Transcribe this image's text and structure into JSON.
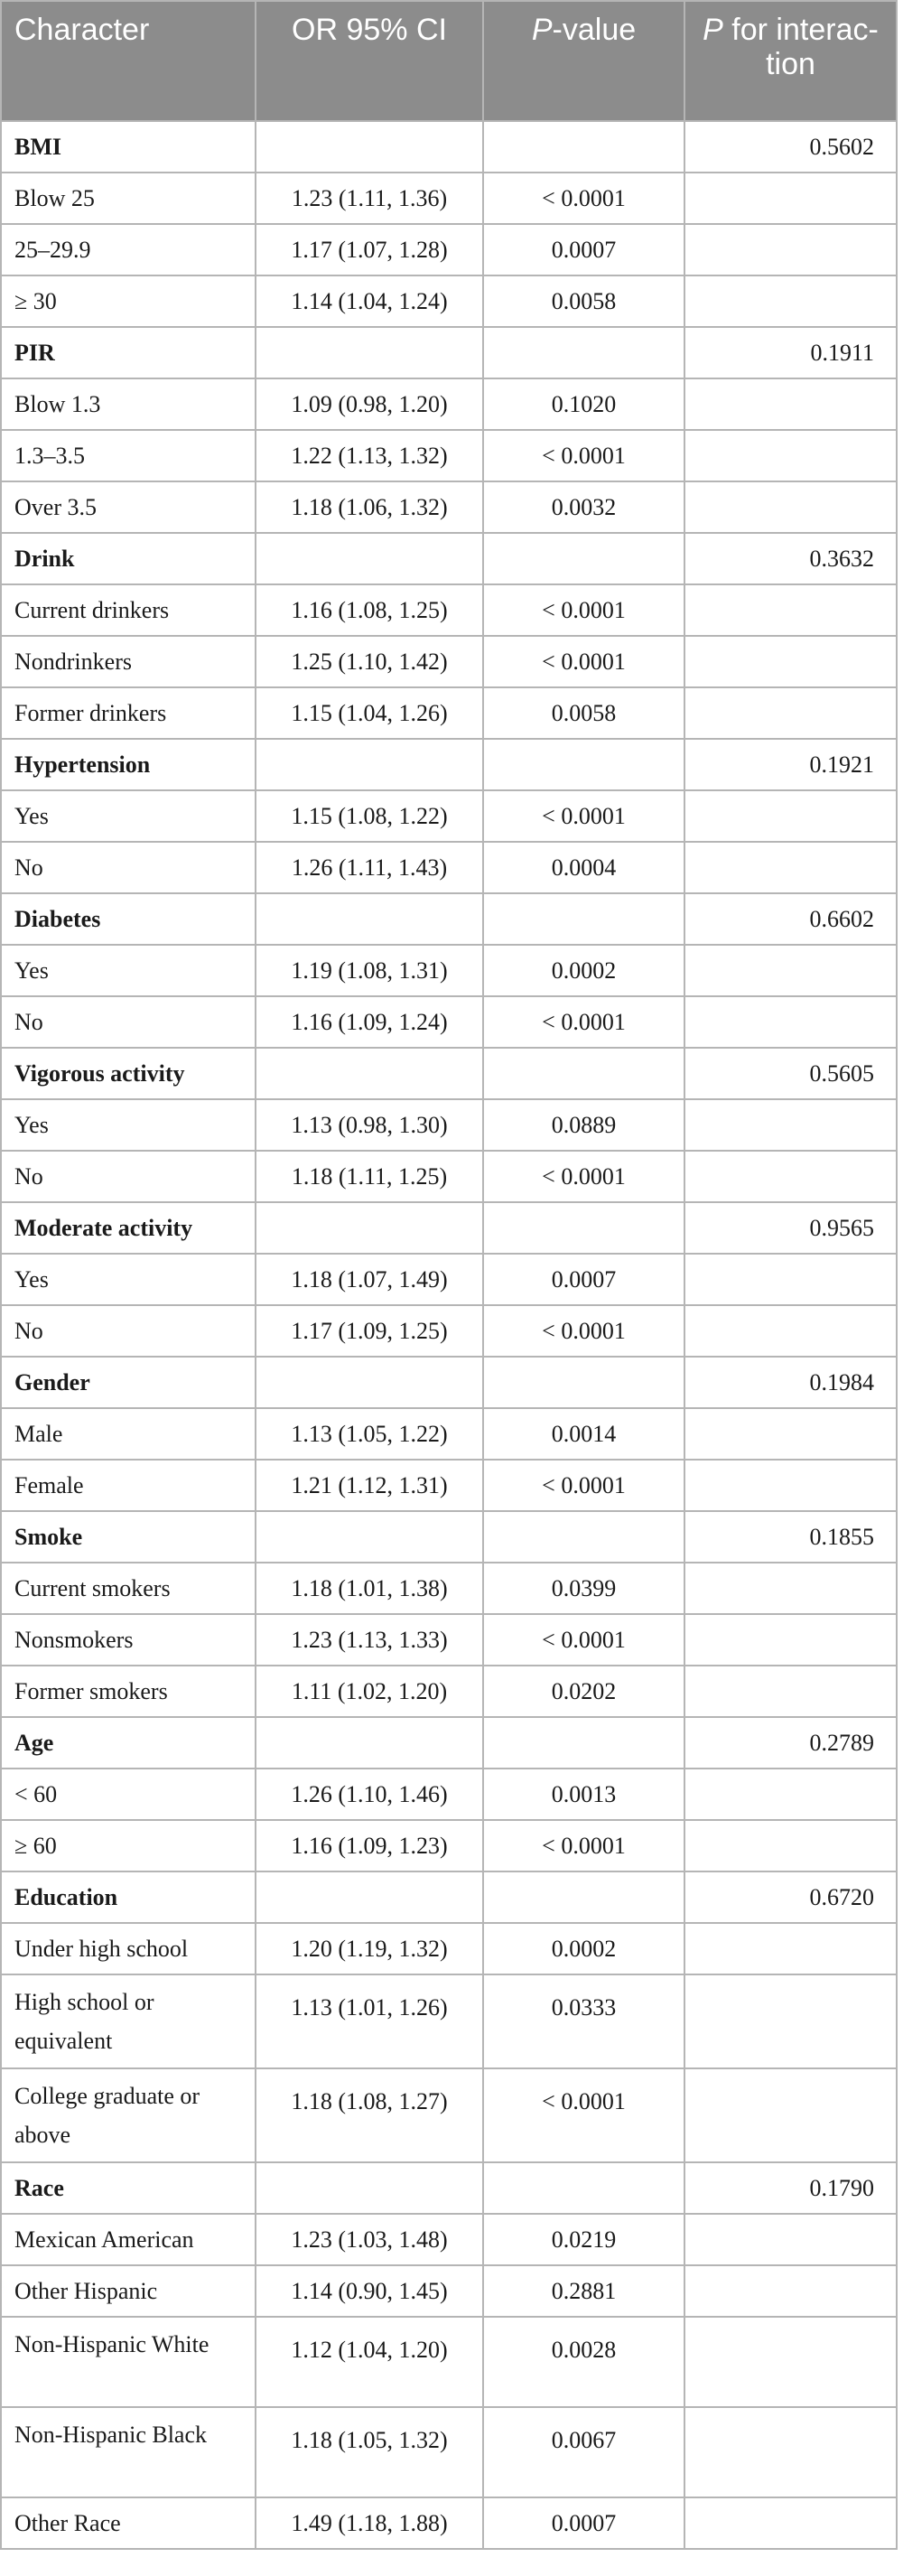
{
  "table": {
    "headers": {
      "character": "Character",
      "or": "OR 95% CI",
      "p_italic": "P",
      "p_rest": "-value",
      "pint_italic": "P",
      "pint_rest": " for interac-tion"
    },
    "rows": [
      {
        "label": "BMI",
        "or": "",
        "p": "",
        "pint": "0.5602",
        "group": true
      },
      {
        "label": "Blow 25",
        "or": "1.23 (1.11, 1.36)",
        "p": "< 0.0001",
        "pint": ""
      },
      {
        "label": "25–29.9",
        "or": "1.17 (1.07, 1.28)",
        "p": "0.0007",
        "pint": ""
      },
      {
        "label": "≥ 30",
        "or": "1.14 (1.04, 1.24)",
        "p": "0.0058",
        "pint": ""
      },
      {
        "label": "PIR",
        "or": "",
        "p": "",
        "pint": "0.1911",
        "group": true
      },
      {
        "label": "Blow 1.3",
        "or": "1.09 (0.98, 1.20)",
        "p": "0.1020",
        "pint": ""
      },
      {
        "label": "1.3–3.5",
        "or": "1.22 (1.13, 1.32)",
        "p": "< 0.0001",
        "pint": ""
      },
      {
        "label": "Over 3.5",
        "or": "1.18 (1.06, 1.32)",
        "p": "0.0032",
        "pint": ""
      },
      {
        "label": "Drink",
        "or": "",
        "p": "",
        "pint": "0.3632",
        "group": true
      },
      {
        "label": "Current drinkers",
        "or": "1.16 (1.08, 1.25)",
        "p": "< 0.0001",
        "pint": ""
      },
      {
        "label": "Nondrinkers",
        "or": "1.25 (1.10, 1.42)",
        "p": "< 0.0001",
        "pint": ""
      },
      {
        "label": "Former drinkers",
        "or": "1.15 (1.04, 1.26)",
        "p": "0.0058",
        "pint": ""
      },
      {
        "label": "Hypertension",
        "or": "",
        "p": "",
        "pint": "0.1921",
        "group": true
      },
      {
        "label": "Yes",
        "or": "1.15 (1.08, 1.22)",
        "p": "< 0.0001",
        "pint": ""
      },
      {
        "label": "No",
        "or": "1.26 (1.11, 1.43)",
        "p": "0.0004",
        "pint": ""
      },
      {
        "label": "Diabetes",
        "or": "",
        "p": "",
        "pint": "0.6602",
        "group": true
      },
      {
        "label": "Yes",
        "or": "1.19 (1.08, 1.31)",
        "p": "0.0002",
        "pint": ""
      },
      {
        "label": "No",
        "or": "1.16 (1.09, 1.24)",
        "p": "< 0.0001",
        "pint": ""
      },
      {
        "label": "Vigorous activity",
        "or": "",
        "p": "",
        "pint": "0.5605",
        "group": true
      },
      {
        "label": "Yes",
        "or": "1.13 (0.98, 1.30)",
        "p": "0.0889",
        "pint": ""
      },
      {
        "label": "No",
        "or": "1.18 (1.11, 1.25)",
        "p": "< 0.0001",
        "pint": ""
      },
      {
        "label": "Moderate activity",
        "or": "",
        "p": "",
        "pint": "0.9565",
        "group": true
      },
      {
        "label": "Yes",
        "or": "1.18 (1.07, 1.49)",
        "p": "0.0007",
        "pint": ""
      },
      {
        "label": "No",
        "or": "1.17 (1.09, 1.25)",
        "p": "< 0.0001",
        "pint": ""
      },
      {
        "label": "Gender",
        "or": "",
        "p": "",
        "pint": "0.1984",
        "group": true
      },
      {
        "label": "Male",
        "or": "1.13 (1.05, 1.22)",
        "p": "0.0014",
        "pint": ""
      },
      {
        "label": "Female",
        "or": "1.21 (1.12, 1.31)",
        "p": "< 0.0001",
        "pint": ""
      },
      {
        "label": "Smoke",
        "or": "",
        "p": "",
        "pint": "0.1855",
        "group": true
      },
      {
        "label": "Current smokers",
        "or": "1.18 (1.01, 1.38)",
        "p": "0.0399",
        "pint": ""
      },
      {
        "label": "Nonsmokers",
        "or": "1.23 (1.13, 1.33)",
        "p": "< 0.0001",
        "pint": ""
      },
      {
        "label": "Former smokers",
        "or": "1.11 (1.02, 1.20)",
        "p": "0.0202",
        "pint": ""
      },
      {
        "label": "Age",
        "or": "",
        "p": "",
        "pint": "0.2789",
        "group": true
      },
      {
        "label": "< 60",
        "or": "1.26 (1.10, 1.46)",
        "p": "0.0013",
        "pint": ""
      },
      {
        "label": "≥ 60",
        "or": "1.16 (1.09, 1.23)",
        "p": "< 0.0001",
        "pint": ""
      },
      {
        "label": "Education",
        "or": "",
        "p": "",
        "pint": "0.6720",
        "group": true
      },
      {
        "label": "Under high school",
        "or": "1.20 (1.19, 1.32)",
        "p": "0.0002",
        "pint": ""
      },
      {
        "label": "High school or equivalent",
        "or": "1.13 (1.01, 1.26)",
        "p": "0.0333",
        "pint": "",
        "tall": true
      },
      {
        "label": "College graduate or above",
        "or": "1.18 (1.08, 1.27)",
        "p": "< 0.0001",
        "pint": "",
        "tall": true
      },
      {
        "label": "Race",
        "or": "",
        "p": "",
        "pint": "0.1790",
        "group": true
      },
      {
        "label": "Mexican American",
        "or": "1.23 (1.03, 1.48)",
        "p": "0.0219",
        "pint": ""
      },
      {
        "label": "Other Hispanic",
        "or": "1.14 (0.90, 1.45)",
        "p": "0.2881",
        "pint": ""
      },
      {
        "label": "Non-Hispanic White",
        "or": "1.12 (1.04, 1.20)",
        "p": "0.0028",
        "pint": "",
        "tall": true
      },
      {
        "label": "Non-Hispanic Black",
        "or": "1.18 (1.05, 1.32)",
        "p": "0.0067",
        "pint": "",
        "tall": true
      },
      {
        "label": "Other Race",
        "or": "1.49 (1.18, 1.88)",
        "p": "0.0007",
        "pint": ""
      }
    ]
  }
}
